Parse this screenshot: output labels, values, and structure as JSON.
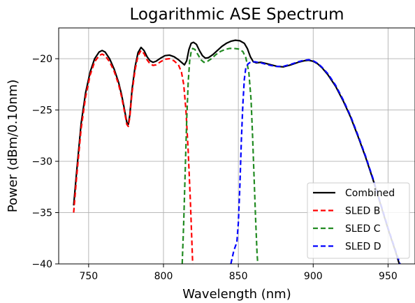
{
  "chart_data": {
    "type": "line",
    "title": "Logarithmic ASE Spectrum",
    "xlabel": "Wavelength (nm)",
    "ylabel": "Power (dBm/0.10nm)",
    "xlim": [
      730,
      968
    ],
    "ylim": [
      -40,
      -17
    ],
    "xticks": [
      750,
      800,
      850,
      900,
      950
    ],
    "yticks": [
      -40,
      -35,
      -30,
      -25,
      -20
    ],
    "ytick_labels": [
      "−40",
      "−35",
      "−30",
      "−25",
      "−20"
    ],
    "grid": true,
    "legend_position": "bottom-right",
    "series": [
      {
        "name": "Combined",
        "color": "#000000",
        "style": "solid",
        "points": [
          [
            740,
            -34.3
          ],
          [
            742,
            -31.0
          ],
          [
            745,
            -26.3
          ],
          [
            748,
            -23.3
          ],
          [
            751,
            -21.3
          ],
          [
            754,
            -20.0
          ],
          [
            757,
            -19.35
          ],
          [
            759,
            -19.2
          ],
          [
            761,
            -19.35
          ],
          [
            764,
            -20.0
          ],
          [
            767,
            -21.0
          ],
          [
            770,
            -22.3
          ],
          [
            772,
            -23.5
          ],
          [
            774,
            -25.0
          ],
          [
            775.5,
            -26.2
          ],
          [
            776.5,
            -26.4
          ],
          [
            777.5,
            -25.5
          ],
          [
            779,
            -23.0
          ],
          [
            781,
            -20.8
          ],
          [
            783,
            -19.4
          ],
          [
            785,
            -18.9
          ],
          [
            787,
            -19.2
          ],
          [
            789,
            -19.8
          ],
          [
            791,
            -20.2
          ],
          [
            793,
            -20.35
          ],
          [
            795,
            -20.25
          ],
          [
            798,
            -19.95
          ],
          [
            801,
            -19.7
          ],
          [
            804,
            -19.65
          ],
          [
            807,
            -19.8
          ],
          [
            810,
            -20.1
          ],
          [
            812,
            -20.35
          ],
          [
            814,
            -20.6
          ],
          [
            815.5,
            -20.2
          ],
          [
            817,
            -19.1
          ],
          [
            818.5,
            -18.5
          ],
          [
            820,
            -18.4
          ],
          [
            822,
            -18.6
          ],
          [
            824,
            -19.2
          ],
          [
            826,
            -19.7
          ],
          [
            828,
            -19.95
          ],
          [
            830,
            -19.9
          ],
          [
            833,
            -19.6
          ],
          [
            836,
            -19.2
          ],
          [
            839,
            -18.8
          ],
          [
            842,
            -18.5
          ],
          [
            845,
            -18.3
          ],
          [
            848,
            -18.2
          ],
          [
            851,
            -18.25
          ],
          [
            854,
            -18.5
          ],
          [
            856,
            -19.0
          ],
          [
            858,
            -19.8
          ],
          [
            860,
            -20.3
          ],
          [
            862,
            -20.4
          ],
          [
            865,
            -20.35
          ],
          [
            868,
            -20.45
          ],
          [
            872,
            -20.6
          ],
          [
            876,
            -20.75
          ],
          [
            880,
            -20.8
          ],
          [
            885,
            -20.6
          ],
          [
            890,
            -20.35
          ],
          [
            894,
            -20.2
          ],
          [
            897,
            -20.15
          ],
          [
            900,
            -20.25
          ],
          [
            903,
            -20.5
          ],
          [
            906,
            -20.9
          ],
          [
            910,
            -21.6
          ],
          [
            915,
            -22.7
          ],
          [
            920,
            -24.1
          ],
          [
            925,
            -25.7
          ],
          [
            930,
            -27.6
          ],
          [
            935,
            -29.6
          ],
          [
            940,
            -31.8
          ],
          [
            945,
            -34.2
          ],
          [
            950,
            -36.6
          ],
          [
            955,
            -38.8
          ],
          [
            957.5,
            -40.0
          ]
        ]
      },
      {
        "name": "SLED B",
        "color": "#ff0000",
        "style": "dashed",
        "points": [
          [
            740,
            -35.0
          ],
          [
            742,
            -31.5
          ],
          [
            745,
            -26.8
          ],
          [
            748,
            -23.7
          ],
          [
            751,
            -21.6
          ],
          [
            754,
            -20.3
          ],
          [
            757,
            -19.7
          ],
          [
            759,
            -19.55
          ],
          [
            761,
            -19.7
          ],
          [
            764,
            -20.3
          ],
          [
            767,
            -21.2
          ],
          [
            770,
            -22.5
          ],
          [
            772,
            -23.7
          ],
          [
            774,
            -25.2
          ],
          [
            775.5,
            -26.4
          ],
          [
            776.5,
            -26.6
          ],
          [
            777.5,
            -25.7
          ],
          [
            779,
            -23.3
          ],
          [
            781,
            -21.1
          ],
          [
            783,
            -19.7
          ],
          [
            785,
            -19.2
          ],
          [
            787,
            -19.5
          ],
          [
            789,
            -20.1
          ],
          [
            791,
            -20.5
          ],
          [
            793,
            -20.65
          ],
          [
            795,
            -20.6
          ],
          [
            798,
            -20.3
          ],
          [
            801,
            -20.05
          ],
          [
            804,
            -20.0
          ],
          [
            807,
            -20.2
          ],
          [
            810,
            -20.6
          ],
          [
            812,
            -21.3
          ],
          [
            813.5,
            -22.5
          ],
          [
            815,
            -25.0
          ],
          [
            816.5,
            -29.0
          ],
          [
            818,
            -34.0
          ],
          [
            819.5,
            -40.0
          ]
        ]
      },
      {
        "name": "SLED C",
        "color": "#228b22",
        "style": "dashed",
        "points": [
          [
            812.5,
            -40.0
          ],
          [
            813.5,
            -36.0
          ],
          [
            814.5,
            -31.0
          ],
          [
            815.5,
            -26.0
          ],
          [
            816.5,
            -22.3
          ],
          [
            817.5,
            -20.2
          ],
          [
            818.5,
            -19.3
          ],
          [
            819.5,
            -19.0
          ],
          [
            821,
            -19.1
          ],
          [
            823,
            -19.6
          ],
          [
            825,
            -20.1
          ],
          [
            827,
            -20.35
          ],
          [
            829,
            -20.3
          ],
          [
            832,
            -20.0
          ],
          [
            835,
            -19.6
          ],
          [
            838,
            -19.3
          ],
          [
            841,
            -19.1
          ],
          [
            844,
            -19.0
          ],
          [
            847,
            -19.0
          ],
          [
            850,
            -19.05
          ],
          [
            853,
            -19.3
          ],
          [
            855,
            -19.9
          ],
          [
            857,
            -21.3
          ],
          [
            858.5,
            -24.0
          ],
          [
            859.5,
            -27.5
          ],
          [
            860.5,
            -31.5
          ],
          [
            861.5,
            -35.5
          ],
          [
            862.5,
            -39.0
          ],
          [
            863,
            -40.0
          ]
        ]
      },
      {
        "name": "SLED D",
        "color": "#0000ff",
        "style": "dashed",
        "points": [
          [
            845,
            -40.0
          ],
          [
            847,
            -38.7
          ],
          [
            849,
            -37.9
          ],
          [
            850,
            -36.0
          ],
          [
            851,
            -32.5
          ],
          [
            852,
            -28.0
          ],
          [
            853,
            -24.5
          ],
          [
            854,
            -22.0
          ],
          [
            855,
            -20.9
          ],
          [
            856.5,
            -20.5
          ],
          [
            858,
            -20.35
          ],
          [
            861,
            -20.3
          ],
          [
            865,
            -20.4
          ],
          [
            870,
            -20.6
          ],
          [
            875,
            -20.75
          ],
          [
            880,
            -20.75
          ],
          [
            885,
            -20.55
          ],
          [
            890,
            -20.3
          ],
          [
            894,
            -20.15
          ],
          [
            897,
            -20.1
          ],
          [
            900,
            -20.2
          ],
          [
            903,
            -20.45
          ],
          [
            906,
            -20.85
          ],
          [
            910,
            -21.5
          ],
          [
            915,
            -22.6
          ],
          [
            920,
            -24.0
          ],
          [
            925,
            -25.6
          ],
          [
            930,
            -27.5
          ],
          [
            935,
            -29.5
          ],
          [
            940,
            -31.7
          ],
          [
            945,
            -34.1
          ],
          [
            950,
            -36.5
          ],
          [
            955,
            -38.7
          ],
          [
            958,
            -40.0
          ]
        ]
      }
    ]
  }
}
